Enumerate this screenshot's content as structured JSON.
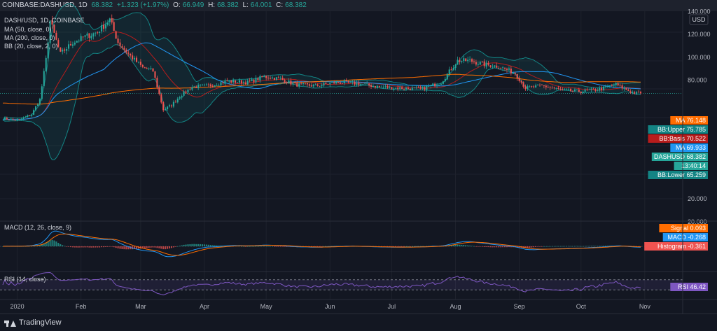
{
  "header": {
    "symbol": "COINBASE:DASHUSD, 1D",
    "last": "68.382",
    "change": "+1.323 (+1.97%)",
    "o_label": "O:",
    "o_val": "66.949",
    "h_label": "H:",
    "h_val": "68.382",
    "l_label": "L:",
    "l_val": "64.001",
    "c_label": "C:",
    "c_val": "68.382"
  },
  "legend": {
    "title": "DASH/USD, 1D, COINBASE",
    "ma50": "MA (50, close, 0)",
    "ma200": "MA (200, close, 0)",
    "bb": "BB (20, close, 2, 0)",
    "macd": "MACD (12, 26, close, 9)",
    "rsi": "RSI (14, close)"
  },
  "axis": {
    "currency": "USD",
    "price_ticks": [
      "140.000",
      "120.000",
      "100.000",
      "80.000",
      "20.000"
    ],
    "macd_top": "20.000",
    "months": [
      "2020",
      "Feb",
      "Mar",
      "Apr",
      "May",
      "Jun",
      "Jul",
      "Aug",
      "Sep",
      "Oct",
      "Nov"
    ]
  },
  "price_badges": [
    {
      "label": "MA",
      "value": "76.148",
      "color": "#ff6d00"
    },
    {
      "label": "BB:Upper",
      "value": "75.785",
      "color": "#138484"
    },
    {
      "label": "BB:Basis",
      "value": "70.522",
      "color": "#b71c1c"
    },
    {
      "label": "MA",
      "value": "69.933",
      "color": "#2196f3"
    },
    {
      "label": "DASHUSD",
      "value": "68.382",
      "color": "#26a69a"
    },
    {
      "label": "",
      "value": "13:40:14",
      "color": "#26a69a"
    },
    {
      "label": "BB:Lower",
      "value": "65.259",
      "color": "#138484"
    }
  ],
  "macd_badges": [
    {
      "label": "Signal",
      "value": "0.093",
      "color": "#ff6d00"
    },
    {
      "label": "MACD",
      "value": "-0.268",
      "color": "#2196f3"
    },
    {
      "label": "Histogram",
      "value": "-0.361",
      "color": "#ef5350"
    }
  ],
  "rsi_badge": {
    "label": "RSI",
    "value": "46.42",
    "color": "#7e57c2"
  },
  "brand": "TradingView",
  "colors": {
    "up": "#26a69a",
    "down": "#ef5350",
    "ma50": "#2196f3",
    "ma200": "#ff6d00",
    "bb_basis": "#b71c1c",
    "bb_band": "#138484",
    "rsi": "#7e57c2"
  },
  "chart_data": {
    "type": "candlestick",
    "symbol": "DASHUSD",
    "ylim": [
      20,
      140
    ],
    "points": [
      [
        "2019-12-26",
        46
      ],
      [
        "2020-01-02",
        45
      ],
      [
        "2020-01-08",
        50
      ],
      [
        "2020-01-12",
        63
      ],
      [
        "2020-01-15",
        98
      ],
      [
        "2020-01-17",
        132
      ],
      [
        "2020-01-22",
        103
      ],
      [
        "2020-01-28",
        113
      ],
      [
        "2020-02-03",
        118
      ],
      [
        "2020-02-09",
        122
      ],
      [
        "2020-02-15",
        133
      ],
      [
        "2020-02-19",
        113
      ],
      [
        "2020-02-25",
        101
      ],
      [
        "2020-03-02",
        91
      ],
      [
        "2020-03-07",
        88
      ],
      [
        "2020-03-12",
        54
      ],
      [
        "2020-03-16",
        58
      ],
      [
        "2020-03-20",
        66
      ],
      [
        "2020-03-26",
        74
      ],
      [
        "2020-04-03",
        75
      ],
      [
        "2020-04-12",
        79
      ],
      [
        "2020-04-22",
        78
      ],
      [
        "2020-04-30",
        83
      ],
      [
        "2020-05-08",
        81
      ],
      [
        "2020-05-15",
        76
      ],
      [
        "2020-05-25",
        75
      ],
      [
        "2020-06-04",
        78
      ],
      [
        "2020-06-15",
        77
      ],
      [
        "2020-06-25",
        74
      ],
      [
        "2020-07-05",
        73
      ],
      [
        "2020-07-15",
        72
      ],
      [
        "2020-07-25",
        78
      ],
      [
        "2020-08-02",
        97
      ],
      [
        "2020-08-08",
        97
      ],
      [
        "2020-08-14",
        94
      ],
      [
        "2020-08-22",
        92
      ],
      [
        "2020-08-30",
        86
      ],
      [
        "2020-09-04",
        73
      ],
      [
        "2020-09-12",
        75
      ],
      [
        "2020-09-22",
        71
      ],
      [
        "2020-10-01",
        70
      ],
      [
        "2020-10-10",
        72
      ],
      [
        "2020-10-18",
        76
      ],
      [
        "2020-10-25",
        70
      ],
      [
        "2020-10-28",
        68.382
      ]
    ]
  }
}
